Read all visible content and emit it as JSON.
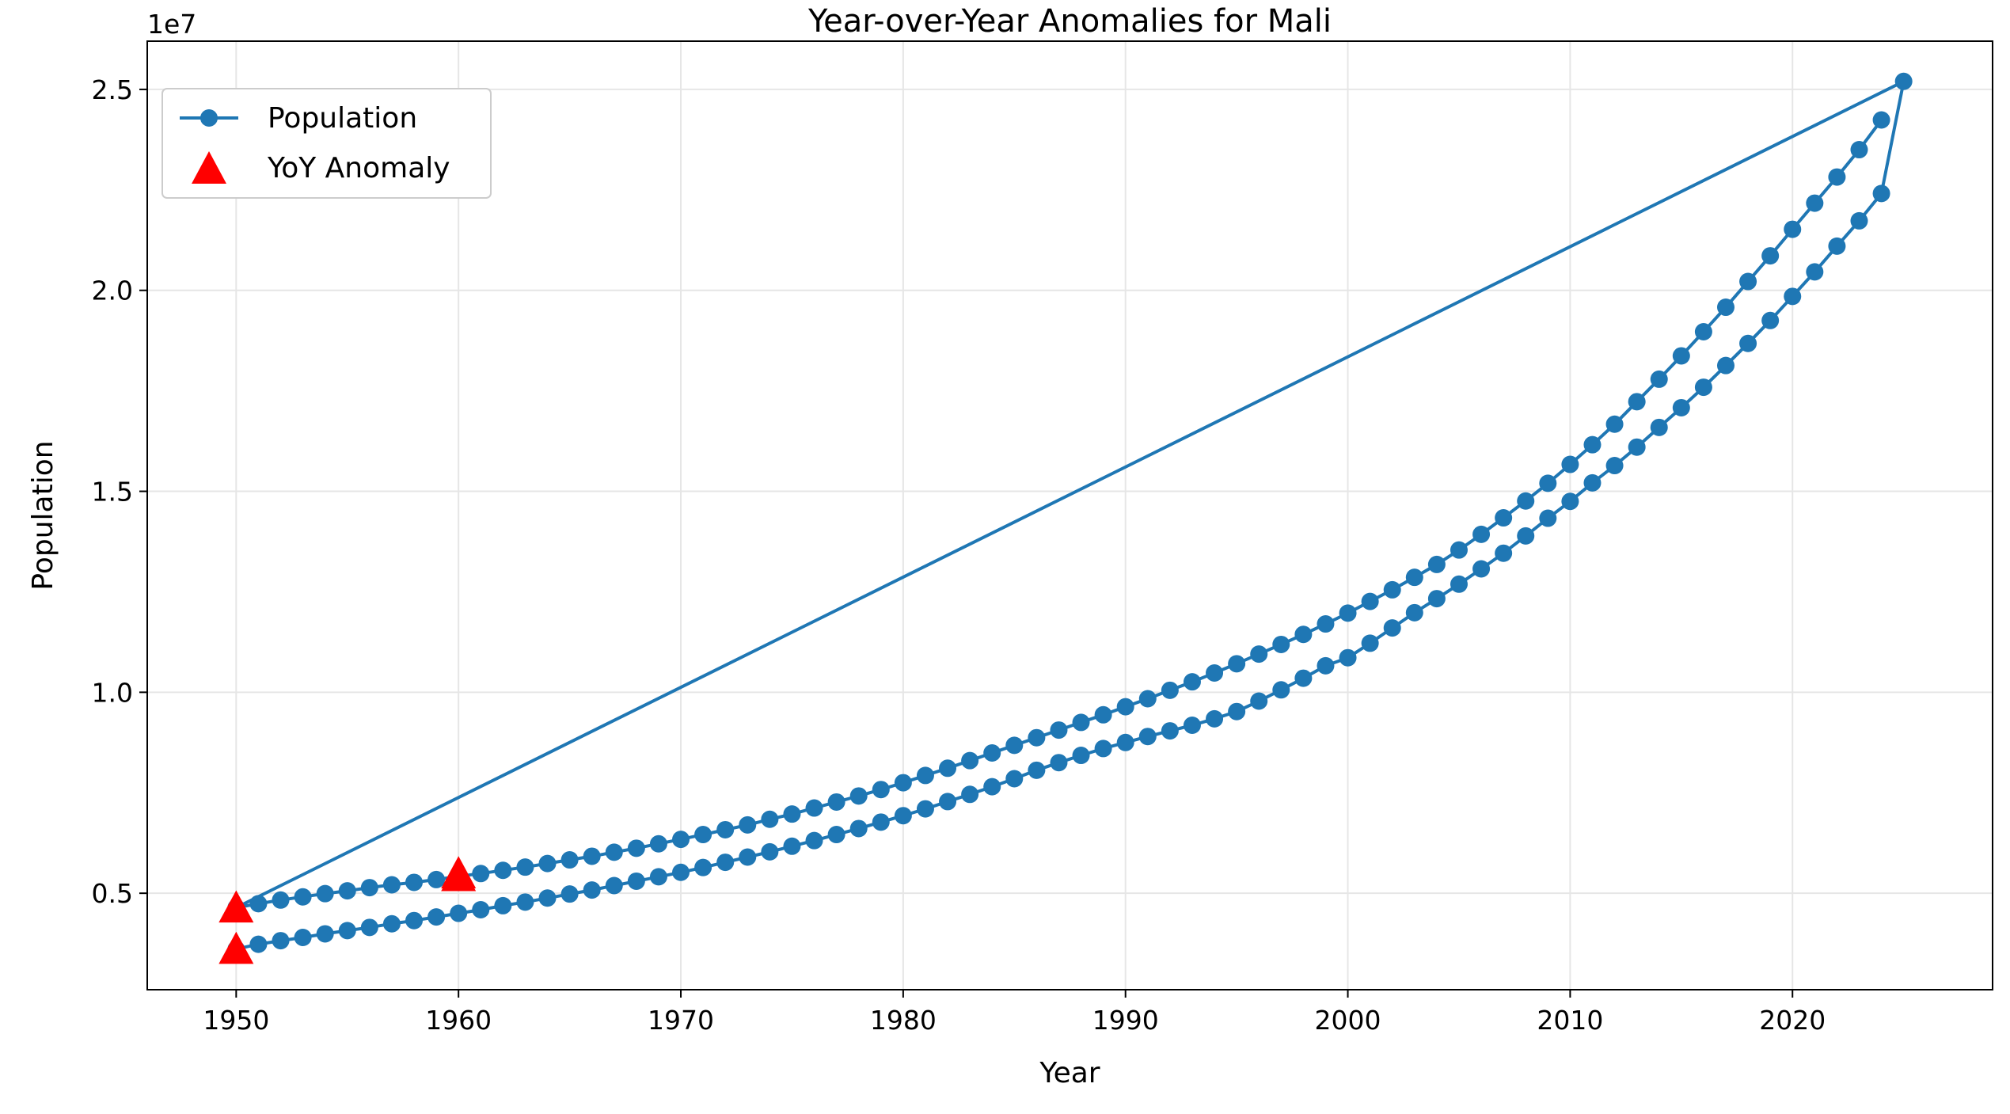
{
  "chart_data": {
    "type": "line",
    "title": "Year-over-Year Anomalies for Mali",
    "xlabel": "Year",
    "ylabel": "Population",
    "y_offset_text": "1e7",
    "xlim": [
      1946,
      2029
    ],
    "ylim": [
      2600000,
      26200000
    ],
    "x_ticks": [
      1950,
      1960,
      1970,
      1980,
      1990,
      2000,
      2010,
      2020
    ],
    "x_tick_labels": [
      "1950",
      "1960",
      "1970",
      "1980",
      "1990",
      "2000",
      "2010",
      "2020"
    ],
    "y_ticks": [
      5000000,
      10000000,
      15000000,
      20000000,
      25000000
    ],
    "y_tick_labels": [
      "0.5",
      "1.0",
      "1.5",
      "2.0",
      "2.5"
    ],
    "grid": true,
    "legend_position": "upper-left",
    "legend": [
      {
        "label": "Population",
        "marker": "circle-line"
      },
      {
        "label": "YoY Anomaly",
        "marker": "triangle"
      }
    ],
    "series": [
      {
        "name": "Population",
        "color": "#1f77b4",
        "x": [
          1950,
          1951,
          1952,
          1953,
          1954,
          1955,
          1956,
          1957,
          1958,
          1959,
          1960,
          1961,
          1962,
          1963,
          1964,
          1965,
          1966,
          1967,
          1968,
          1969,
          1970,
          1971,
          1972,
          1973,
          1974,
          1975,
          1976,
          1977,
          1978,
          1979,
          1980,
          1981,
          1982,
          1983,
          1984,
          1985,
          1986,
          1987,
          1988,
          1989,
          1990,
          1991,
          1992,
          1993,
          1994,
          1995,
          1996,
          1997,
          1998,
          1999,
          2000,
          2001,
          2002,
          2003,
          2004,
          2005,
          2006,
          2007,
          2008,
          2009,
          2010,
          2011,
          2012,
          2013,
          2014,
          2015,
          2016,
          2017,
          2018,
          2019,
          2020,
          2021,
          2022,
          2023,
          2024,
          2025,
          1950,
          1951,
          1952,
          1953,
          1954,
          1955,
          1956,
          1957,
          1958,
          1959,
          1960,
          1961,
          1962,
          1963,
          1964,
          1965,
          1966,
          1967,
          1968,
          1969,
          1970,
          1971,
          1972,
          1973,
          1974,
          1975,
          1976,
          1977,
          1978,
          1979,
          1980,
          1981,
          1982,
          1983,
          1984,
          1985,
          1986,
          1987,
          1988,
          1989,
          1990,
          1991,
          1992,
          1993,
          1994,
          1995,
          1996,
          1997,
          1998,
          1999,
          2000,
          2001,
          2002,
          2003,
          2004,
          2005,
          2006,
          2007,
          2008,
          2009,
          2010,
          2011,
          2012,
          2013,
          2014,
          2015,
          2016,
          2017,
          2018,
          2019,
          2020,
          2021,
          2022,
          2023,
          2024
        ],
        "y": [
          3610000,
          3730000,
          3820000,
          3900000,
          3990000,
          4070000,
          4150000,
          4240000,
          4320000,
          4410000,
          4500000,
          4590000,
          4690000,
          4780000,
          4880000,
          4980000,
          5080000,
          5190000,
          5300000,
          5410000,
          5520000,
          5640000,
          5770000,
          5900000,
          6030000,
          6170000,
          6310000,
          6460000,
          6610000,
          6770000,
          6930000,
          7100000,
          7280000,
          7460000,
          7650000,
          7850000,
          8060000,
          8250000,
          8430000,
          8600000,
          8750000,
          8900000,
          9040000,
          9180000,
          9340000,
          9520000,
          9780000,
          10060000,
          10350000,
          10660000,
          10860000,
          11220000,
          11600000,
          11980000,
          12330000,
          12690000,
          13070000,
          13460000,
          13890000,
          14330000,
          14750000,
          15210000,
          15640000,
          16100000,
          16590000,
          17080000,
          17590000,
          18130000,
          18680000,
          19250000,
          19850000,
          20460000,
          21100000,
          21730000,
          22410000,
          25200000,
          4640000,
          4740000,
          4830000,
          4910000,
          4990000,
          5060000,
          5140000,
          5210000,
          5270000,
          5340000,
          5420000,
          5490000,
          5570000,
          5650000,
          5740000,
          5830000,
          5920000,
          6020000,
          6120000,
          6230000,
          6340000,
          6460000,
          6580000,
          6700000,
          6840000,
          6970000,
          7120000,
          7270000,
          7420000,
          7580000,
          7750000,
          7930000,
          8110000,
          8300000,
          8490000,
          8680000,
          8870000,
          9060000,
          9250000,
          9440000,
          9640000,
          9840000,
          10050000,
          10260000,
          10480000,
          10710000,
          10950000,
          11190000,
          11440000,
          11700000,
          11970000,
          12260000,
          12550000,
          12860000,
          13180000,
          13540000,
          13930000,
          14340000,
          14760000,
          15200000,
          15670000,
          16160000,
          16670000,
          17230000,
          17790000,
          18370000,
          18970000,
          19580000,
          20220000,
          20860000,
          21520000,
          22170000,
          22820000,
          23500000,
          24240000
        ]
      },
      {
        "name": "YoY Anomaly",
        "color": "#ff0000",
        "x": [
          1950,
          1950,
          1960,
          1960
        ],
        "y": [
          3610000,
          4640000,
          5420000,
          5490000
        ]
      }
    ]
  }
}
